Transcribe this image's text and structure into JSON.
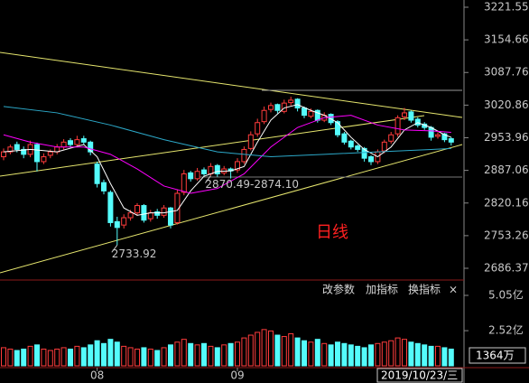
{
  "chart_data": {
    "type": "candlestick",
    "open": [
      2915,
      2925,
      2940,
      2930,
      2920,
      2940,
      2905,
      2918,
      2925,
      2935,
      2948,
      2940,
      2952,
      2945,
      2900,
      2862,
      2842,
      2782,
      2775,
      2790,
      2800,
      2815,
      2788,
      2802,
      2795,
      2810,
      2780,
      2842,
      2882,
      2870,
      2888,
      2880,
      2897,
      2882,
      2890,
      2888,
      2905,
      2932,
      2962,
      2987,
      3012,
      3022,
      3008,
      3026,
      3033,
      3015,
      2998,
      3010,
      2990,
      3002,
      2987,
      2962,
      2947,
      2937,
      2932,
      2915,
      2905,
      2927,
      2947,
      2962,
      2997,
      3007,
      2992,
      2982,
      2975,
      2957,
      2962,
      2952
    ],
    "high": [
      2932,
      2940,
      2946,
      2936,
      2948,
      2944,
      2922,
      2930,
      2941,
      2951,
      2953,
      2958,
      2958,
      2948,
      2905,
      2868,
      2846,
      2792,
      2797,
      2806,
      2820,
      2818,
      2806,
      2808,
      2816,
      2812,
      2848,
      2888,
      2886,
      2892,
      2893,
      2902,
      2900,
      2896,
      2893,
      2912,
      2936,
      2967,
      2993,
      3018,
      3026,
      3024,
      3032,
      3038,
      3035,
      3018,
      3014,
      3012,
      3006,
      3004,
      2990,
      2966,
      2950,
      2940,
      2935,
      2918,
      2930,
      2950,
      2966,
      3000,
      3015,
      3010,
      2996,
      2986,
      2978,
      2965,
      2964,
      2955
    ],
    "low": [
      2908,
      2920,
      2924,
      2912,
      2914,
      2885,
      2900,
      2912,
      2920,
      2930,
      2934,
      2935,
      2940,
      2918,
      2852,
      2838,
      2772,
      2733.92,
      2768,
      2784,
      2794,
      2780,
      2782,
      2788,
      2790,
      2768,
      2776,
      2836,
      2864,
      2866,
      2874,
      2876,
      2874,
      2877,
      2870.49,
      2882,
      2900,
      2928,
      2956,
      2982,
      3006,
      3004,
      3004,
      3020,
      3008,
      2994,
      2994,
      2985,
      2986,
      2980,
      2955,
      2940,
      2930,
      2925,
      2905,
      2898,
      2900,
      2922,
      2942,
      2956,
      2990,
      2985,
      2975,
      2970,
      2948,
      2952,
      2945,
      2938
    ],
    "close": [
      2925,
      2935,
      2930,
      2920,
      2940,
      2905,
      2915,
      2925,
      2935,
      2945,
      2940,
      2950,
      2945,
      2925,
      2860,
      2845,
      2780,
      2770,
      2790,
      2800,
      2815,
      2785,
      2800,
      2795,
      2810,
      2775,
      2840,
      2880,
      2870,
      2885,
      2880,
      2895,
      2880,
      2890,
      2886,
      2905,
      2930,
      2960,
      2985,
      3010,
      3020,
      3010,
      3025,
      3031,
      3015,
      3000,
      3008,
      2990,
      3000,
      2985,
      2960,
      2945,
      2935,
      2930,
      2912,
      2905,
      2925,
      2945,
      2960,
      2995,
      3005,
      2990,
      2980,
      2975,
      2955,
      2960,
      2950,
      2945
    ],
    "volume": [
      1.3,
      1.2,
      1.1,
      1.2,
      1.4,
      1.5,
      1.2,
      1.1,
      1.2,
      1.3,
      1.2,
      1.4,
      1.3,
      1.5,
      1.8,
      1.6,
      1.9,
      1.7,
      1.4,
      1.3,
      1.2,
      1.3,
      1.2,
      1.1,
      1.3,
      1.5,
      1.7,
      1.9,
      1.6,
      1.5,
      1.6,
      1.4,
      1.3,
      1.5,
      1.6,
      1.7,
      2.0,
      2.2,
      2.4,
      2.6,
      2.5,
      2.2,
      2.1,
      2.3,
      2.0,
      1.8,
      1.7,
      1.9,
      1.6,
      1.5,
      1.7,
      1.6,
      1.5,
      1.4,
      1.3,
      1.5,
      1.6,
      1.7,
      1.8,
      2.0,
      1.9,
      1.7,
      1.6,
      1.5,
      1.4,
      1.4,
      1.3,
      1.2
    ],
    "up_color": "#ff3c3c",
    "down_color": "#54fcfc",
    "ylim": [
      2686.37,
      3221.55
    ],
    "yticks": [
      3221.55,
      3154.66,
      3087.76,
      3020.86,
      2953.96,
      2887.06,
      2820.16,
      2753.26,
      2686.37
    ],
    "volume_ylim": [
      0,
      5.05
    ],
    "volume_yticks": [
      {
        "value": 5.05,
        "label": "5.05亿"
      },
      {
        "value": 2.52,
        "label": "2.52亿"
      }
    ],
    "volume_label": "1364万",
    "x_labels": [
      {
        "at": 14,
        "label": "08"
      },
      {
        "at": 35,
        "label": "09"
      }
    ],
    "date_label": "2019/10/23/三",
    "ma_series": [
      {
        "color": "#ffffff",
        "x": [
          0,
          4,
          8,
          12,
          14,
          16,
          18,
          20,
          22,
          24,
          26,
          28,
          30,
          32,
          34,
          36,
          38,
          40,
          42,
          44,
          46,
          48,
          50,
          52,
          54,
          56,
          58,
          60,
          62,
          64,
          66,
          67
        ],
        "values": [
          2925,
          2930,
          2925,
          2940,
          2915,
          2860,
          2810,
          2795,
          2800,
          2800,
          2805,
          2845,
          2875,
          2885,
          2886,
          2895,
          2945,
          2990,
          3015,
          3022,
          3010,
          3000,
          2985,
          2955,
          2930,
          2915,
          2935,
          2970,
          2985,
          2975,
          2960,
          2955
        ]
      },
      {
        "color": "#ff00ff",
        "x": [
          0,
          4,
          8,
          12,
          16,
          20,
          24,
          28,
          32,
          36,
          40,
          44,
          48,
          52,
          56,
          60,
          64,
          67
        ],
        "values": [
          2960,
          2945,
          2935,
          2935,
          2920,
          2890,
          2855,
          2840,
          2850,
          2880,
          2935,
          2975,
          2995,
          3000,
          2980,
          2970,
          2968,
          2965
        ]
      },
      {
        "color": "#2ca8c8",
        "x": [
          0,
          8,
          16,
          24,
          32,
          40,
          48,
          56,
          64,
          67
        ],
        "values": [
          3018,
          3005,
          2980,
          2950,
          2925,
          2915,
          2920,
          2925,
          2930,
          2932
        ]
      }
    ],
    "annotations": [
      {
        "text": "2733.92",
        "at": 17
      },
      {
        "text": "2870.49-2874.10",
        "at": 31
      }
    ]
  },
  "toolbar": [
    "改参数",
    "加指标",
    "换指标",
    "×"
  ],
  "period_label": "日线"
}
